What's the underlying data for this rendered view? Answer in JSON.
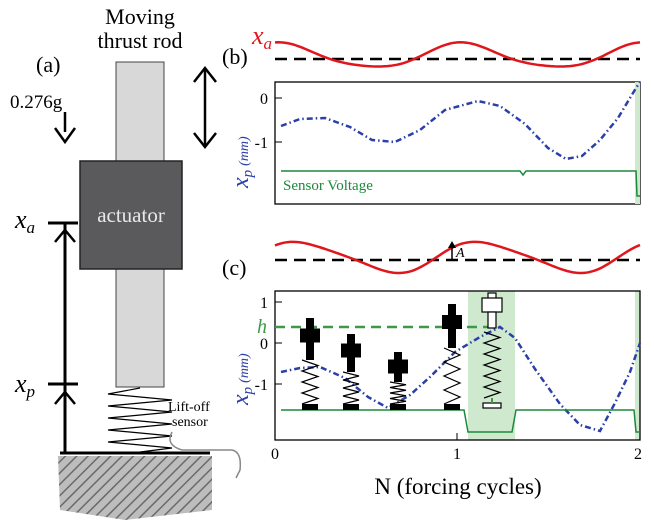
{
  "panel_a": {
    "panel_label": "(a)",
    "title_line1": "Moving",
    "title_line2": "thrust rod",
    "accel_label": "0.276g",
    "actuator_label": "actuator",
    "xa_symbol": "x",
    "xa_sub": "a",
    "xp_symbol": "x",
    "xp_sub": "p",
    "sensor_line1": "Lift-off",
    "sensor_line2": "sensor"
  },
  "panel_b": {
    "panel_label": "(b)",
    "xa_symbol": "x",
    "xa_sub": "a",
    "ylabel_symbol": "x",
    "ylabel_sub": "p",
    "ylabel_unit": "(mm)",
    "yticks": [
      "0",
      "-1"
    ],
    "sensor_text": "Sensor Voltage"
  },
  "panel_c": {
    "panel_label": "(c)",
    "amp_label": "A",
    "h_label": "h",
    "ylabel_symbol": "x",
    "ylabel_sub": "p",
    "ylabel_unit": "(mm)",
    "yticks": [
      "1",
      "0",
      "-1"
    ],
    "xticks": [
      "0",
      "1",
      "2"
    ],
    "xlabel": "N (forcing cycles)"
  },
  "colors": {
    "actuator_trace": "#e0161d",
    "particle_trace": "#2b3fa8",
    "sensor_trace": "#1a8a3a",
    "highlight": "#cfe9cf",
    "actuator_body": "#5a5a5c",
    "rod": "#d8d8d8"
  }
}
